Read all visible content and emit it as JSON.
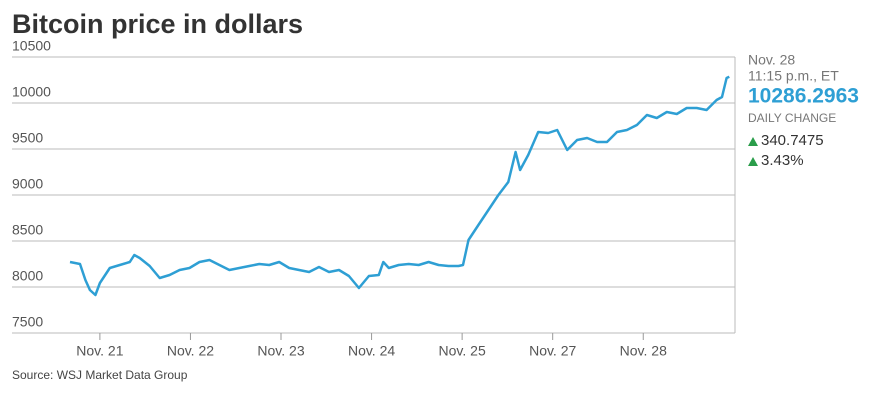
{
  "chart_data": {
    "type": "line",
    "title": "Bitcoin price in dollars",
    "source": "Source: WSJ Market Data Group",
    "color": "#2e9fd4",
    "grid": true,
    "xlim": [
      -0.33,
      6.98
    ],
    "ylim": [
      7500,
      10500
    ],
    "yticks": [
      7500,
      8000,
      8500,
      9000,
      9500,
      10000,
      10500
    ],
    "xticks": [
      {
        "value": 0,
        "label": "Nov. 21"
      },
      {
        "value": 1,
        "label": "Nov. 22"
      },
      {
        "value": 2,
        "label": "Nov. 23"
      },
      {
        "value": 3,
        "label": "Nov. 24"
      },
      {
        "value": 4,
        "label": "Nov. 25"
      },
      {
        "value": 5,
        "label": "Nov. 27"
      },
      {
        "value": 6,
        "label": "Nov. 28"
      }
    ],
    "x": [
      -0.33,
      -0.22,
      -0.16,
      -0.11,
      -0.05,
      0,
      0.11,
      0.22,
      0.33,
      0.38,
      0.44,
      0.55,
      0.66,
      0.77,
      0.88,
      0.99,
      1.1,
      1.21,
      1.32,
      1.43,
      1.54,
      1.65,
      1.76,
      1.87,
      1.98,
      2.09,
      2.2,
      2.31,
      2.42,
      2.53,
      2.64,
      2.75,
      2.86,
      2.97,
      3.08,
      3.13,
      3.19,
      3.3,
      3.41,
      3.52,
      3.63,
      3.74,
      3.85,
      3.96,
      4.01,
      4.07,
      4.18,
      4.29,
      4.4,
      4.51,
      4.59,
      4.64,
      4.73,
      4.84,
      4.95,
      5.05,
      5.16,
      5.27,
      5.38,
      5.49,
      5.6,
      5.71,
      5.82,
      5.93,
      6.04,
      6.15,
      6.26,
      6.37,
      6.48,
      6.59,
      6.7,
      6.81,
      6.87,
      6.92,
      6.95
    ],
    "values": [
      8272,
      8250,
      8076,
      7967,
      7913,
      8043,
      8207,
      8239,
      8272,
      8348,
      8315,
      8228,
      8098,
      8130,
      8185,
      8207,
      8272,
      8293,
      8239,
      8185,
      8207,
      8228,
      8250,
      8239,
      8272,
      8207,
      8185,
      8163,
      8217,
      8163,
      8185,
      8120,
      7989,
      8120,
      8130,
      8272,
      8207,
      8239,
      8250,
      8239,
      8272,
      8239,
      8228,
      8228,
      8239,
      8511,
      8674,
      8837,
      9000,
      9141,
      9467,
      9272,
      9435,
      9685,
      9674,
      9706,
      9489,
      9598,
      9620,
      9576,
      9576,
      9685,
      9706,
      9761,
      9870,
      9837,
      9902,
      9880,
      9946,
      9946,
      9924,
      10033,
      10065,
      10272,
      10286
    ],
    "readout": {
      "date": "Nov. 28",
      "time": "11:15 p.m., ET",
      "price": "10286.2963",
      "change_label": "DAILY CHANGE",
      "change": "340.7475",
      "change_pct": "3.43%"
    }
  }
}
